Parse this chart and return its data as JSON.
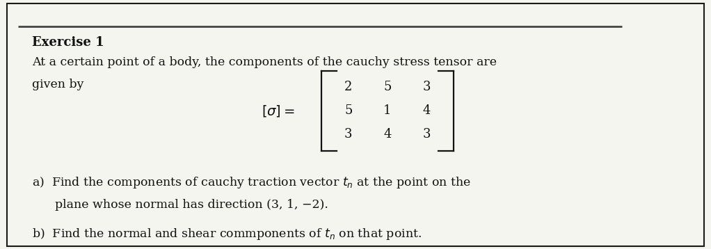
{
  "title": "Exercise 1",
  "line1": "At a certain point of a body, the components of the cauchy stress tensor are",
  "line2": "given by",
  "matrix_rows": [
    [
      "2",
      "5",
      "3"
    ],
    [
      "5",
      "1",
      "4"
    ],
    [
      "3",
      "4",
      "3"
    ]
  ],
  "part_a_1": "a)  Find the components of cauchy traction vector $t_n$ at the point on the",
  "part_a_2": "      plane whose normal has direction (3, 1, −2).",
  "part_b": "b)  Find the normal and shear commponents of $t_n$ on that point.",
  "bg_color": "#f5f5f0",
  "text_color": "#111111",
  "border_color": "#1a1a1a",
  "font_size": 12.5,
  "title_font_size": 13.0
}
